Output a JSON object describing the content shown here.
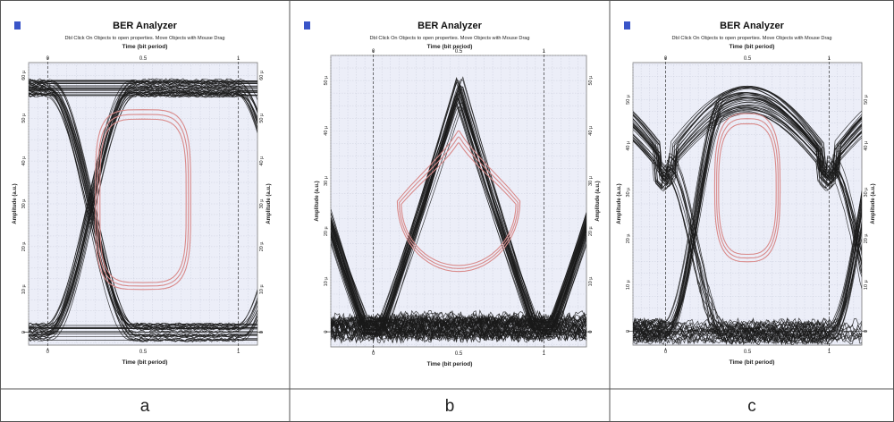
{
  "window": {
    "title": "BER Analyzer",
    "hint": "Dbl Click On Objects to open properties.  Move Objects with Mouse Drag"
  },
  "colors": {
    "trace": "#1a1a1a",
    "eye_contour": "#d98a8a",
    "plot_bg": "#eceef8",
    "grid": "#c7c9d8"
  },
  "chart_data": [
    {
      "type": "line",
      "caption": "a",
      "xlabel": "Time (bit period)",
      "ylabel": "Amplitude (a.u.)",
      "x_ticks": [
        "0",
        "0.5",
        "1"
      ],
      "y_ticks": [
        "0",
        "10 µ",
        "20 µ",
        "30 µ",
        "40 µ",
        "50 µ",
        "60 µ"
      ],
      "xlim": [
        -0.1,
        1.1
      ],
      "ylim": [
        -3,
        63
      ],
      "eye": {
        "low": 0,
        "high": 57,
        "crossing": 28.5,
        "shape": "nrz"
      },
      "contour": {
        "center": [
          0.5,
          30
        ],
        "half_width": 0.25,
        "top": 52,
        "bottom": 10
      }
    },
    {
      "type": "line",
      "caption": "b",
      "xlabel": "Time (bit period)",
      "ylabel": "Amplitude (a.u.)",
      "x_ticks": [
        "0",
        "0.5",
        "1"
      ],
      "y_ticks": [
        "0",
        "10 µ",
        "20 µ",
        "30 µ",
        "40 µ",
        "50 µ"
      ],
      "xlim": [
        -0.25,
        1.25
      ],
      "ylim": [
        -3,
        55
      ],
      "eye": {
        "low": 1,
        "high": 48,
        "crossing": 3,
        "shape": "rz"
      },
      "contour": {
        "center": [
          0.5,
          24
        ],
        "half_width": 0.36,
        "top": 40,
        "bottom": 12
      }
    },
    {
      "type": "line",
      "caption": "c",
      "xlabel": "Time (bit period)",
      "ylabel": "Amplitude (a.u.)",
      "x_ticks": [
        "0",
        "0.5",
        "1"
      ],
      "y_ticks": [
        "0",
        "10 µ",
        "20 µ",
        "30 µ",
        "40 µ",
        "50 µ"
      ],
      "xlim": [
        -0.2,
        1.2
      ],
      "ylim": [
        -3,
        58
      ],
      "eye": {
        "low": 0,
        "high": 50,
        "crossing": 16,
        "shape": "sine"
      },
      "contour": {
        "center": [
          0.5,
          30
        ],
        "half_width": 0.2,
        "top": 47,
        "bottom": 15
      }
    }
  ]
}
